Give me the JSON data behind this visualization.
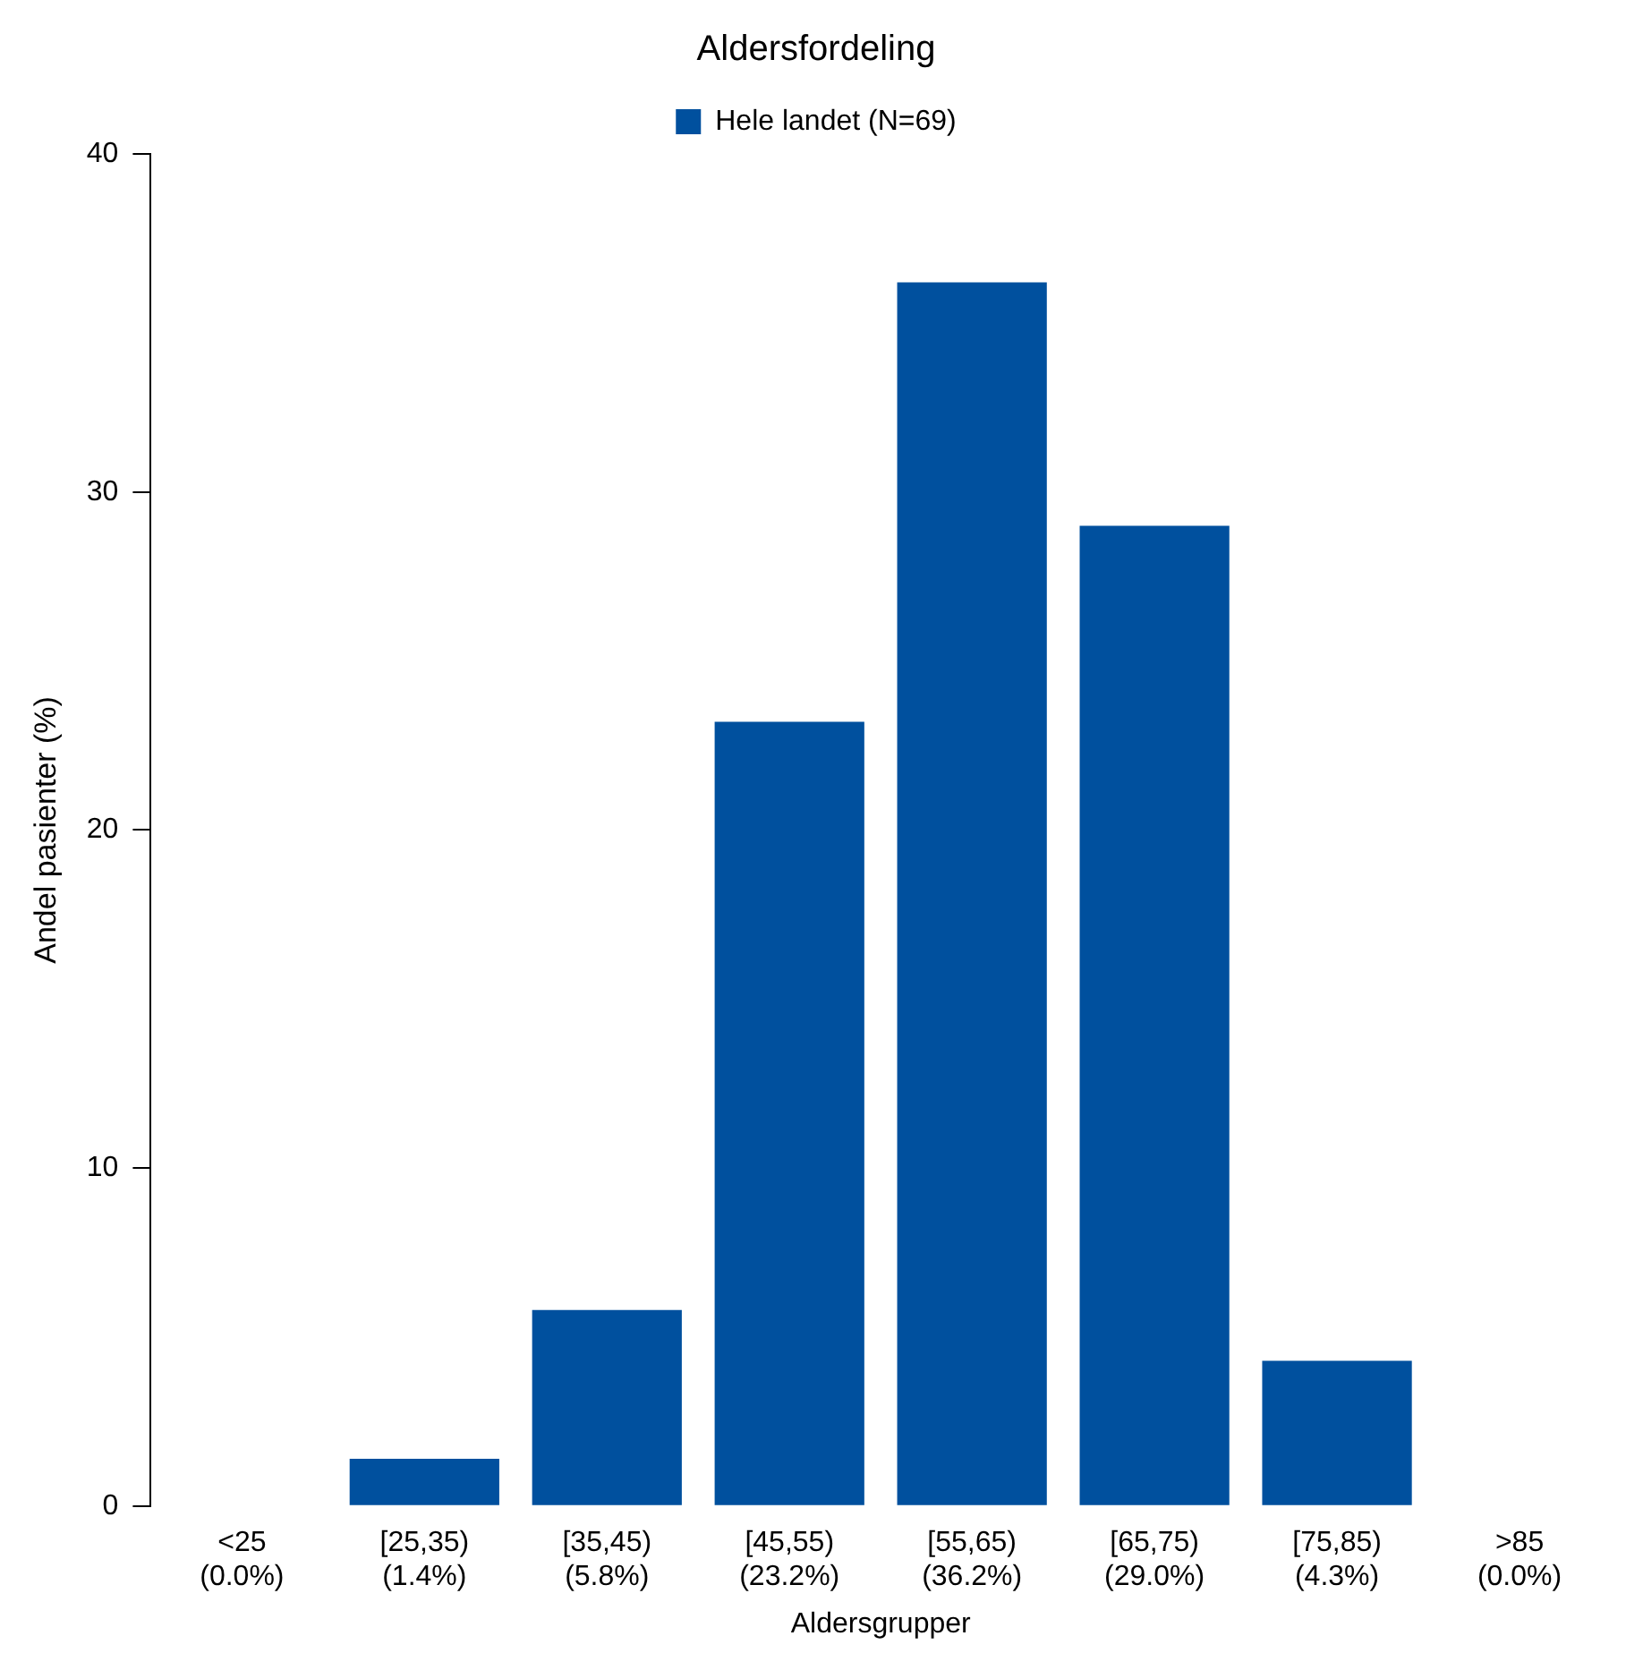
{
  "chart_data": {
    "type": "bar",
    "title": "Aldersfordeling",
    "xlabel": "Aldersgrupper",
    "ylabel": "Andel pasienter (%)",
    "categories": [
      "<25\n(0.0%)",
      "[25,35)\n(1.4%)",
      "[35,45)\n(5.8%)",
      "[45,55)\n(23.2%)",
      "[55,65)\n(36.2%)",
      "[65,75)\n(29.0%)",
      "[75,85)\n(4.3%)",
      ">85\n(0.0%)"
    ],
    "series": [
      {
        "name": "Hele landet (N=69)",
        "color": "#00509e",
        "values": [
          0,
          1.4,
          5.8,
          23.2,
          36.2,
          29.0,
          4.3,
          0
        ]
      }
    ],
    "ylim": [
      0,
      40
    ],
    "yticks": [
      0,
      10,
      20,
      30,
      40
    ],
    "grid": false,
    "legend": "top"
  }
}
